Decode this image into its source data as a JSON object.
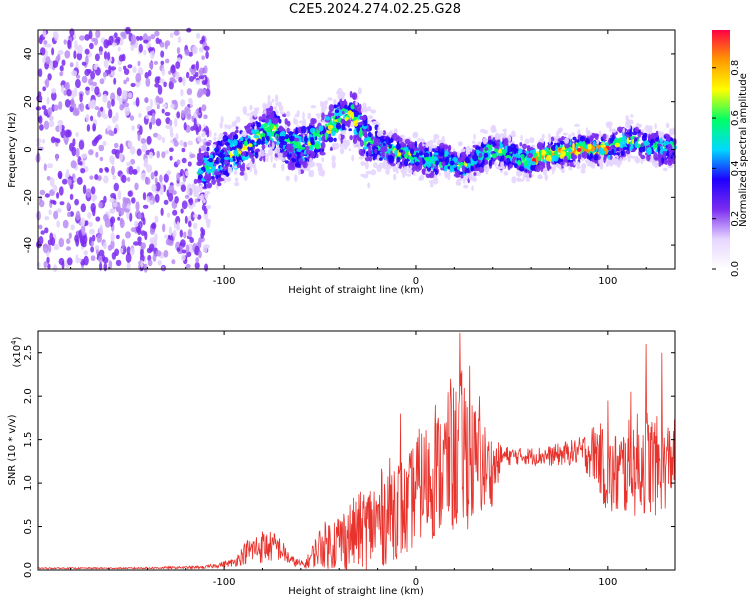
{
  "title": "C2E5.2024.274.02.25.G28",
  "chart_data": [
    {
      "type": "heatmap",
      "xlabel": "Height of straight line (km)",
      "ylabel": "Frequency (Hz)",
      "xlim": [
        -197,
        135
      ],
      "ylim": [
        -50,
        50
      ],
      "xticks": [
        -100,
        0,
        100
      ],
      "yticks": [
        -40,
        -20,
        0,
        20,
        40
      ],
      "noise_region_x": [
        -197,
        -108
      ],
      "ridge": {
        "x": [
          -113,
          -100,
          -90,
          -80,
          -75,
          -68,
          -60,
          -50,
          -40,
          -33,
          -25,
          -15,
          -5,
          0,
          8,
          15,
          22,
          28,
          35,
          40,
          50,
          58,
          65,
          75,
          85,
          95,
          102,
          110,
          120,
          128,
          135
        ],
        "freq": [
          -8,
          -4,
          0,
          6,
          9,
          3,
          0,
          5,
          12,
          15,
          3,
          0,
          -2,
          -3,
          -5,
          -4,
          -7,
          -6,
          -2,
          0,
          -2,
          -5,
          -3,
          -1,
          0,
          0,
          1,
          4,
          2,
          0,
          1
        ]
      },
      "colorbar": {
        "label": "Normalized spectral amplitude",
        "ticks": [
          "0.0",
          "0.2",
          "0.4",
          "0.6",
          "0.8"
        ],
        "range": [
          0,
          0.95
        ],
        "colors": [
          "#ffffff",
          "#e6d5ff",
          "#7b2cf0",
          "#1f00ff",
          "#00d9ff",
          "#00ff66",
          "#ffff00",
          "#ff9900",
          "#ff0044"
        ]
      }
    },
    {
      "type": "line",
      "xlabel": "Height of straight line (km)",
      "ylabel": "SNR (10 * v/v)",
      "scale_note": "(x10",
      "scale_exp": "4",
      "xlim": [
        -197,
        135
      ],
      "ylim": [
        0,
        2.75
      ],
      "xticks": [
        -100,
        0,
        100
      ],
      "yticks": [
        "0.0",
        "0.5",
        "1.0",
        "1.5",
        "2.0",
        "2.5"
      ],
      "series": [
        {
          "color": "#e8322c",
          "x": [
            -197,
            -150,
            -110,
            -95,
            -88,
            -80,
            -72,
            -65,
            -58,
            -50,
            -40,
            -30,
            -20,
            -10,
            -5,
            0,
            10,
            20,
            25,
            30,
            40,
            45,
            55,
            70,
            85,
            95,
            100,
            110,
            120,
            128,
            135
          ],
          "y": [
            0.02,
            0.02,
            0.03,
            0.08,
            0.2,
            0.25,
            0.25,
            0.1,
            0.05,
            0.25,
            0.3,
            0.4,
            0.5,
            0.7,
            0.6,
            0.9,
            1.0,
            1.2,
            1.3,
            1.15,
            1.1,
            1.3,
            1.3,
            1.3,
            1.35,
            1.3,
            1.0,
            1.1,
            1.2,
            1.1,
            1.3
          ],
          "spread": [
            0.01,
            0.01,
            0.02,
            0.06,
            0.18,
            0.25,
            0.2,
            0.08,
            0.05,
            0.3,
            0.45,
            0.55,
            0.7,
            0.8,
            0.7,
            0.8,
            0.9,
            1.1,
            1.2,
            0.9,
            0.5,
            0.15,
            0.12,
            0.15,
            0.2,
            0.5,
            0.6,
            0.7,
            0.8,
            0.7,
            0.5
          ],
          "peaks": [
            {
              "x": 23,
              "y": 2.73
            },
            {
              "x": 18,
              "y": 2.2
            },
            {
              "x": 28,
              "y": 2.35
            },
            {
              "x": 33,
              "y": 2.0
            },
            {
              "x": 10,
              "y": 1.9
            },
            {
              "x": -8,
              "y": 1.8
            },
            {
              "x": 120,
              "y": 2.6
            },
            {
              "x": 128,
              "y": 2.5
            },
            {
              "x": 112,
              "y": 2.05
            },
            {
              "x": 100,
              "y": 1.95
            }
          ]
        }
      ]
    }
  ]
}
